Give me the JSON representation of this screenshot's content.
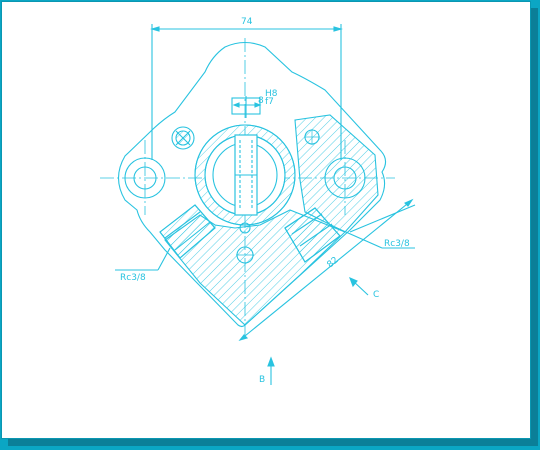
{
  "drawing": {
    "dim_width": "74",
    "dim_diag": "82",
    "fit_base": "8",
    "fit_hole": "H8",
    "fit_shaft": "f7",
    "port_left": "Rc3/8",
    "port_right": "Rc3/8",
    "view_b": "B",
    "view_c": "C"
  },
  "colors": {
    "line": "#29c3e0",
    "background": "#ffffff",
    "frame": "#0ba6c4"
  }
}
